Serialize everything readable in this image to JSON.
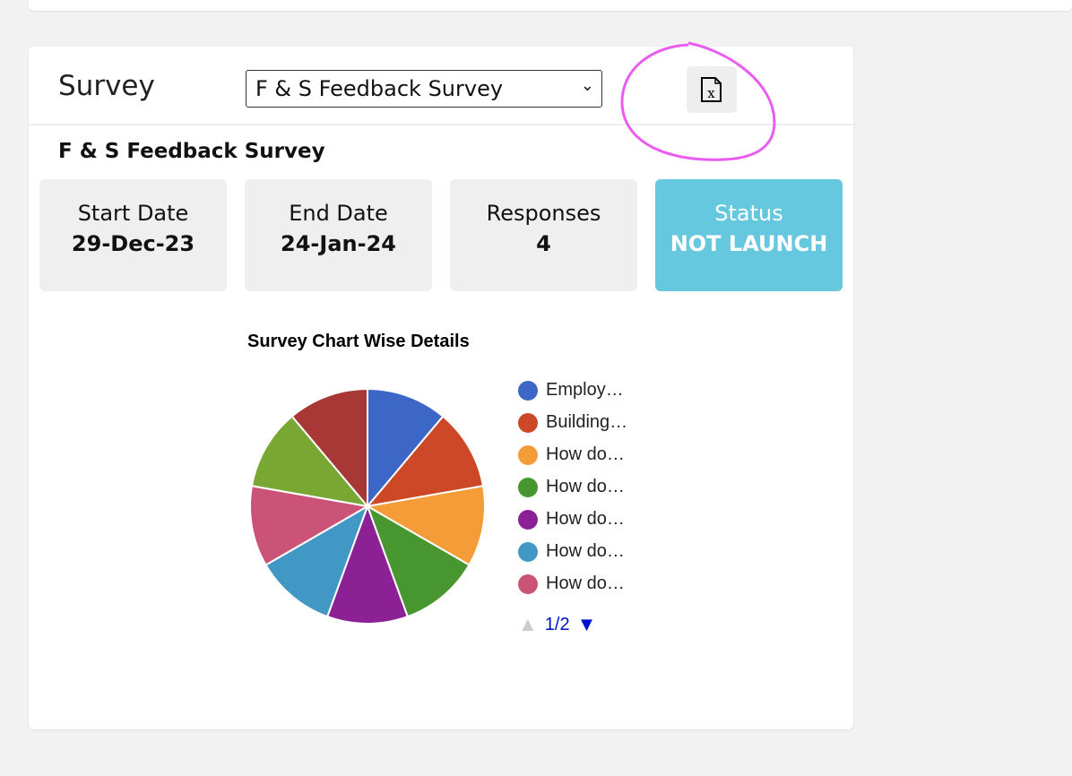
{
  "survey_label": "Survey",
  "survey_select": "F & S Feedback Survey",
  "export_icon": "excel-file-icon",
  "survey_title": "F & S Feedback Survey",
  "stats": [
    {
      "label": "Start Date",
      "value": "29-Dec-23"
    },
    {
      "label": "End Date",
      "value": "24-Jan-24"
    },
    {
      "label": "Responses",
      "value": "4"
    },
    {
      "label": "Status",
      "value": "NOT LAUNCH",
      "color": "#66c8df"
    }
  ],
  "chart_data": {
    "type": "pie",
    "title": "Survey Chart Wise Details",
    "categories": [
      "Employ…",
      "Building…",
      "How do…",
      "How do…",
      "How do…",
      "How do…",
      "How do…",
      "",
      ""
    ],
    "values": [
      1,
      1,
      1,
      1,
      1,
      1,
      1,
      1,
      1
    ],
    "colors": [
      "#3d67c6",
      "#cc4827",
      "#f39c38",
      "#48962f",
      "#8c2196",
      "#4298c4",
      "#cc5378",
      "#79a733",
      "#a83836"
    ],
    "legend": {
      "placement": "right",
      "page": "1/2"
    }
  }
}
